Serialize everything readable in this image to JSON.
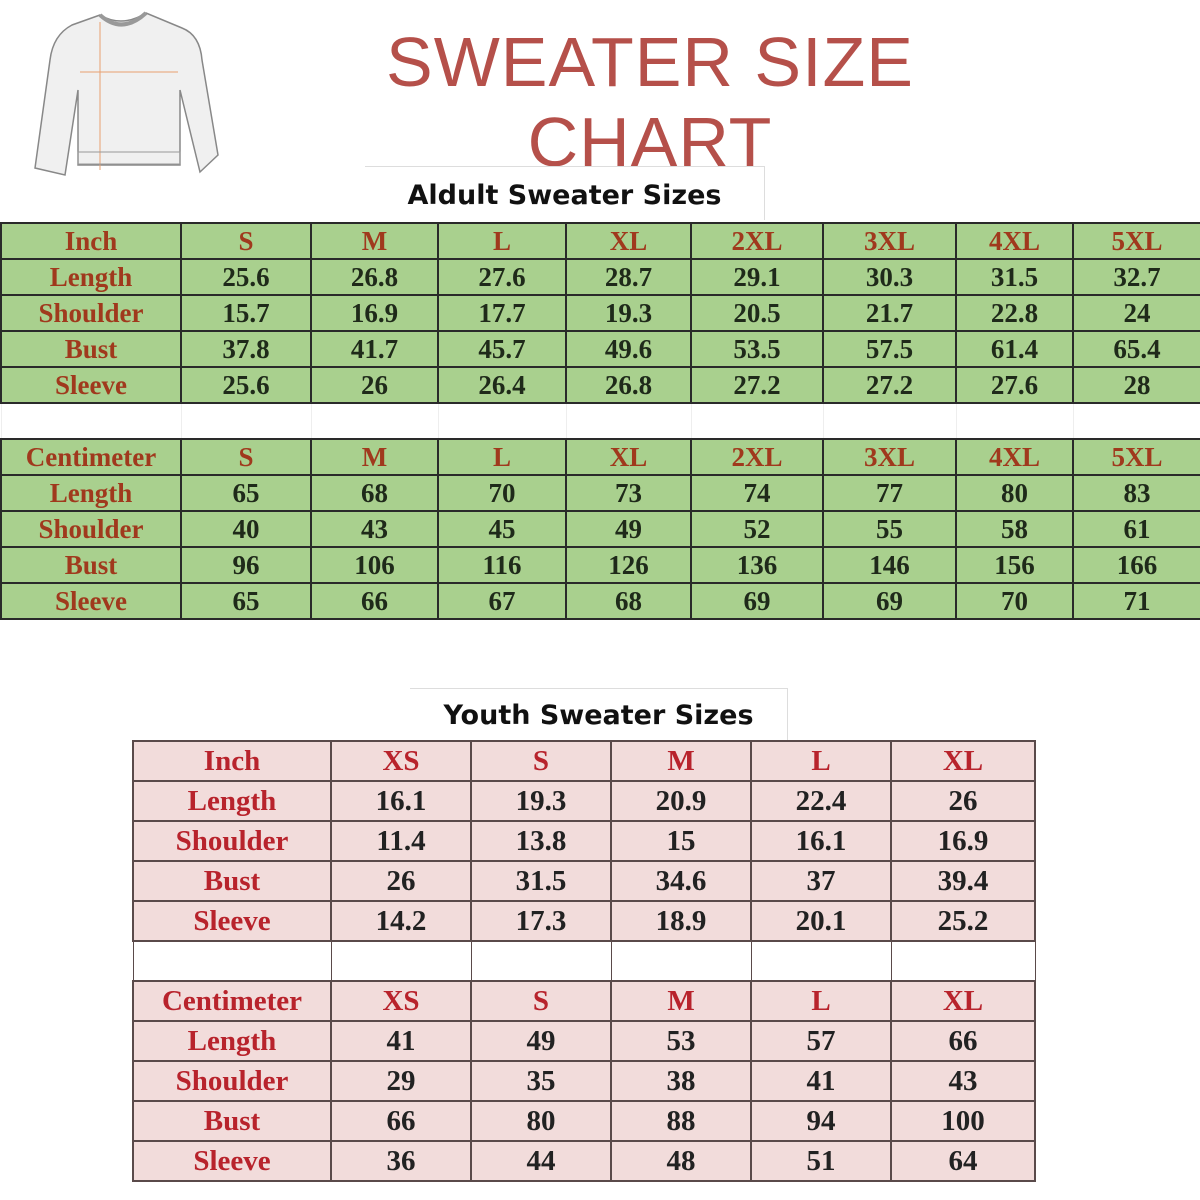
{
  "title": "SWEATER SIZE CHART",
  "colors": {
    "title": "#b5504a",
    "adult_fill": "#a9d08e",
    "youth_fill": "#f2dcdb",
    "adult_label": "#a0391d",
    "youth_label": "#b8232c"
  },
  "illustration": "sweater-measurement-diagram",
  "adult": {
    "subtitle": "Aldult Sweater Sizes",
    "sizes": [
      "S",
      "M",
      "L",
      "XL",
      "2XL",
      "3XL",
      "4XL",
      "5XL"
    ],
    "inch": {
      "unit": "Inch",
      "rows": [
        {
          "label": "Length",
          "values": [
            "25.6",
            "26.8",
            "27.6",
            "28.7",
            "29.1",
            "30.3",
            "31.5",
            "32.7"
          ]
        },
        {
          "label": "Shoulder",
          "values": [
            "15.7",
            "16.9",
            "17.7",
            "19.3",
            "20.5",
            "21.7",
            "22.8",
            "24"
          ]
        },
        {
          "label": "Bust",
          "values": [
            "37.8",
            "41.7",
            "45.7",
            "49.6",
            "53.5",
            "57.5",
            "61.4",
            "65.4"
          ]
        },
        {
          "label": "Sleeve",
          "values": [
            "25.6",
            "26",
            "26.4",
            "26.8",
            "27.2",
            "27.2",
            "27.6",
            "28"
          ]
        }
      ]
    },
    "cm": {
      "unit": "Centimeter",
      "rows": [
        {
          "label": "Length",
          "values": [
            "65",
            "68",
            "70",
            "73",
            "74",
            "77",
            "80",
            "83"
          ]
        },
        {
          "label": "Shoulder",
          "values": [
            "40",
            "43",
            "45",
            "49",
            "52",
            "55",
            "58",
            "61"
          ]
        },
        {
          "label": "Bust",
          "values": [
            "96",
            "106",
            "116",
            "126",
            "136",
            "146",
            "156",
            "166"
          ]
        },
        {
          "label": "Sleeve",
          "values": [
            "65",
            "66",
            "67",
            "68",
            "69",
            "69",
            "70",
            "71"
          ]
        }
      ]
    }
  },
  "youth": {
    "subtitle": "Youth Sweater Sizes",
    "sizes": [
      "XS",
      "S",
      "M",
      "L",
      "XL"
    ],
    "inch": {
      "unit": "Inch",
      "rows": [
        {
          "label": "Length",
          "values": [
            "16.1",
            "19.3",
            "20.9",
            "22.4",
            "26"
          ]
        },
        {
          "label": "Shoulder",
          "values": [
            "11.4",
            "13.8",
            "15",
            "16.1",
            "16.9"
          ]
        },
        {
          "label": "Bust",
          "values": [
            "26",
            "31.5",
            "34.6",
            "37",
            "39.4"
          ]
        },
        {
          "label": "Sleeve",
          "values": [
            "14.2",
            "17.3",
            "18.9",
            "20.1",
            "25.2"
          ]
        }
      ]
    },
    "cm": {
      "unit": "Centimeter",
      "rows": [
        {
          "label": "Length",
          "values": [
            "41",
            "49",
            "53",
            "57",
            "66"
          ]
        },
        {
          "label": "Shoulder",
          "values": [
            "29",
            "35",
            "38",
            "41",
            "43"
          ]
        },
        {
          "label": "Bust",
          "values": [
            "66",
            "80",
            "88",
            "94",
            "100"
          ]
        },
        {
          "label": "Sleeve",
          "values": [
            "36",
            "44",
            "48",
            "51",
            "64"
          ]
        }
      ]
    }
  }
}
